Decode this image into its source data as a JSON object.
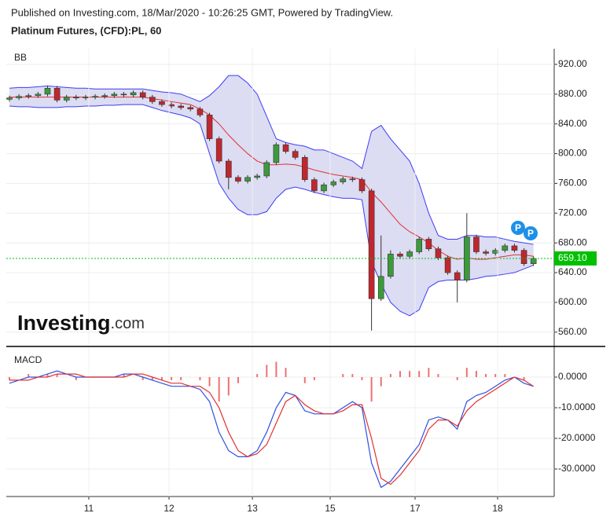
{
  "header": {
    "source": "Published on Investing.com, 18/Mar/2020 - 10:26:25 GMT, Powered by TradingView.",
    "instrument": "Platinum Futures, (CFD):PL, 60"
  },
  "logo": {
    "main": "Investing",
    "suffix": ".com"
  },
  "chart_data": [
    {
      "type": "candlestick",
      "title": "BB",
      "open": [
        873,
        875,
        877,
        878,
        880,
        888,
        872,
        876,
        875,
        876,
        877,
        878,
        880,
        879,
        882,
        876,
        870,
        866,
        864,
        862,
        860,
        852,
        820,
        790,
        768,
        763,
        768,
        770,
        788,
        812,
        803,
        795,
        765,
        750,
        758,
        762,
        766,
        765,
        750,
        605,
        635,
        665,
        662,
        668,
        685,
        672,
        660,
        640,
        630,
        688,
        668,
        666,
        670,
        676,
        670,
        652
      ],
      "high": [
        878,
        880,
        881,
        883,
        891,
        891,
        879,
        879,
        879,
        880,
        881,
        883,
        883,
        885,
        885,
        879,
        873,
        869,
        867,
        865,
        863,
        855,
        823,
        793,
        771,
        771,
        773,
        791,
        815,
        815,
        806,
        798,
        768,
        761,
        765,
        769,
        769,
        768,
        753,
        690,
        670,
        668,
        671,
        688,
        688,
        675,
        663,
        643,
        720,
        691,
        671,
        673,
        679,
        679,
        673,
        662
      ],
      "low": [
        870,
        872,
        874,
        875,
        877,
        869,
        869,
        872,
        872,
        873,
        874,
        875,
        876,
        876,
        873,
        867,
        863,
        861,
        859,
        857,
        849,
        817,
        787,
        752,
        760,
        760,
        765,
        767,
        785,
        800,
        792,
        762,
        747,
        747,
        755,
        759,
        762,
        747,
        562,
        602,
        632,
        659,
        659,
        665,
        669,
        657,
        637,
        600,
        627,
        665,
        663,
        663,
        667,
        667,
        649,
        649
      ],
      "close": [
        875,
        877,
        878,
        880,
        888,
        872,
        876,
        875,
        876,
        877,
        878,
        880,
        879,
        882,
        876,
        870,
        866,
        864,
        862,
        860,
        852,
        820,
        790,
        768,
        763,
        768,
        770,
        788,
        812,
        803,
        795,
        765,
        750,
        758,
        762,
        766,
        765,
        750,
        605,
        635,
        665,
        662,
        668,
        685,
        672,
        660,
        640,
        630,
        688,
        668,
        666,
        670,
        676,
        670,
        652,
        659.1
      ],
      "up_color": "#3c9a3c",
      "down_color": "#c0272d",
      "bands": {
        "upper": [
          888,
          889,
          889,
          890,
          891,
          890,
          889,
          888,
          888,
          887,
          887,
          887,
          887,
          887,
          887,
          885,
          883,
          882,
          880,
          875,
          870,
          878,
          890,
          905,
          905,
          895,
          880,
          850,
          820,
          815,
          812,
          810,
          805,
          805,
          800,
          795,
          790,
          780,
          830,
          838,
          820,
          805,
          790,
          760,
          720,
          690,
          685,
          685,
          690,
          690,
          688,
          688,
          685,
          682,
          680,
          678
        ],
        "middle": [
          876,
          876,
          876,
          876,
          876,
          876,
          876,
          876,
          876,
          876,
          876,
          876,
          876,
          876,
          876,
          874,
          872,
          870,
          868,
          866,
          860,
          852,
          840,
          825,
          812,
          800,
          790,
          785,
          785,
          786,
          785,
          782,
          778,
          775,
          772,
          770,
          768,
          765,
          748,
          735,
          720,
          705,
          695,
          688,
          680,
          670,
          662,
          658,
          660,
          658,
          658,
          660,
          662,
          664,
          664,
          662
        ],
        "lower": [
          864,
          863,
          863,
          862,
          862,
          862,
          863,
          863,
          864,
          864,
          865,
          865,
          866,
          866,
          866,
          862,
          858,
          855,
          852,
          848,
          840,
          800,
          760,
          740,
          725,
          718,
          718,
          722,
          740,
          752,
          755,
          752,
          748,
          745,
          742,
          740,
          740,
          738,
          655,
          625,
          600,
          588,
          582,
          590,
          620,
          628,
          630,
          630,
          630,
          632,
          635,
          636,
          638,
          640,
          645,
          650
        ],
        "band_color": "#3d3df5",
        "middle_color": "#e03030",
        "fill": "#dcdcf3"
      },
      "current_price": {
        "value": 659.1,
        "label": "659.10"
      },
      "current_color": "#00c000",
      "xlim": [
        -0.33,
        57.17
      ],
      "ylim": [
        541.8,
        941.1
      ],
      "yticks": [
        {
          "value": 560,
          "label": "560.00"
        },
        {
          "value": 600,
          "label": "600.00"
        },
        {
          "value": 640,
          "label": "640.00"
        },
        {
          "value": 680,
          "label": "680.00"
        },
        {
          "value": 720,
          "label": "720.00"
        },
        {
          "value": 760,
          "label": "760.00"
        },
        {
          "value": 800,
          "label": "800.00"
        },
        {
          "value": 840,
          "label": "840.00"
        },
        {
          "value": 880,
          "label": "880.00"
        },
        {
          "value": 920,
          "label": "920.00"
        }
      ],
      "grid": true
    },
    {
      "type": "macd",
      "title": "MACD",
      "series": [
        {
          "style": "bar",
          "color": "#f07070",
          "values": [
            -1,
            0,
            1,
            0,
            1,
            1,
            0,
            -1,
            0,
            0,
            0,
            0,
            1,
            0,
            -1,
            -1,
            -1,
            -1,
            -1,
            0,
            -1,
            -3,
            -8,
            -6,
            -2,
            0,
            1,
            4,
            5,
            3,
            0,
            -2,
            -1,
            0,
            0,
            1,
            1,
            -1,
            -8,
            -3,
            1,
            2,
            2,
            2,
            3,
            1,
            0,
            -1,
            3,
            2,
            1,
            1,
            1,
            0,
            -1,
            0
          ]
        },
        {
          "style": "line",
          "color": "#3050e0",
          "values": [
            -2,
            -1,
            0,
            0,
            1,
            2,
            1,
            0,
            0,
            0,
            0,
            0,
            1,
            1,
            0,
            -1,
            -2,
            -3,
            -3,
            -3,
            -4,
            -8,
            -18,
            -24,
            -26,
            -26,
            -24,
            -18,
            -10,
            -5,
            -6,
            -11,
            -12,
            -12,
            -12,
            -10,
            -8,
            -10,
            -28,
            -36,
            -34,
            -30,
            -26,
            -22,
            -14,
            -13,
            -14,
            -17,
            -8,
            -6,
            -5,
            -3,
            -1,
            0,
            -2,
            -3
          ]
        },
        {
          "style": "line",
          "color": "#e03030",
          "values": [
            -1,
            -1,
            -1,
            0,
            0,
            1,
            1,
            1,
            0,
            0,
            0,
            0,
            0,
            1,
            1,
            0,
            -1,
            -2,
            -2,
            -3,
            -3,
            -5,
            -10,
            -18,
            -24,
            -26,
            -25,
            -22,
            -15,
            -8,
            -6,
            -9,
            -11,
            -12,
            -12,
            -11,
            -9,
            -9,
            -20,
            -33,
            -35,
            -32,
            -28,
            -24,
            -17,
            -14,
            -14,
            -16,
            -11,
            -8,
            -6,
            -4,
            -2,
            0,
            -1,
            -3
          ]
        }
      ],
      "xlim": [
        -0.33,
        57.17
      ],
      "ylim": [
        -38.97,
        9.74
      ],
      "yticks": [
        {
          "value": -30,
          "label": "-30.0000"
        },
        {
          "value": -20,
          "label": "-20.0000"
        },
        {
          "value": -10,
          "label": "-10.0000"
        },
        {
          "value": 0,
          "label": "0.0000"
        }
      ],
      "xticks": [
        {
          "value": 8.33,
          "label": "11"
        },
        {
          "value": 16.75,
          "label": "12"
        },
        {
          "value": 25.5,
          "label": "13"
        },
        {
          "value": 33.66,
          "label": "15"
        },
        {
          "value": 42.57,
          "label": "17"
        },
        {
          "value": 51.23,
          "label": "18"
        }
      ],
      "grid": true
    }
  ]
}
